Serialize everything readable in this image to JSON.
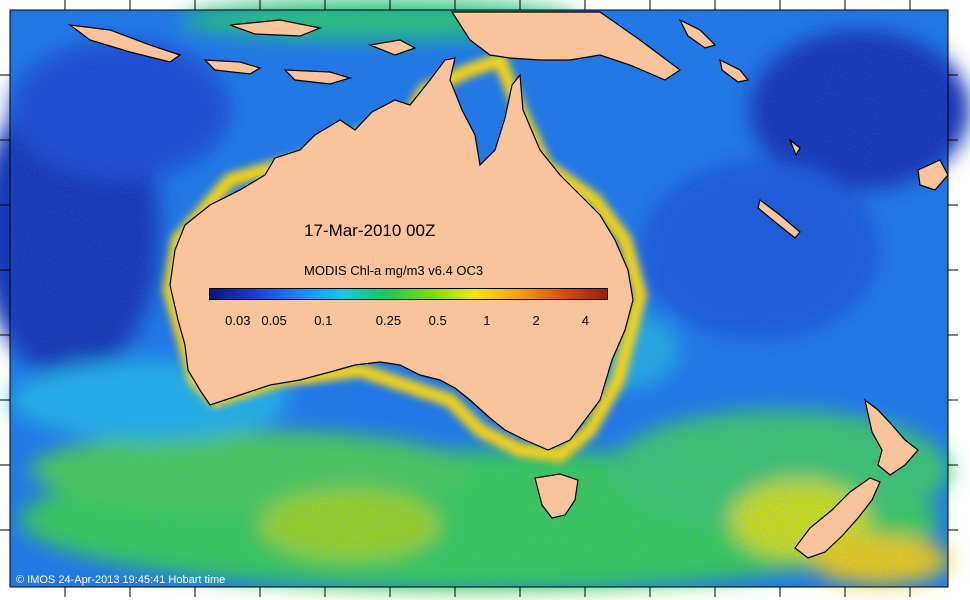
{
  "map": {
    "date_label": "17-Mar-2010 00Z",
    "legend_title": "MODIS Chl-a mg/m3 v6.4 OC3",
    "legend_ticks": [
      "0.03",
      "0.05",
      "0.1",
      "0.25",
      "0.5",
      "1",
      "2",
      "4"
    ],
    "legend_colors": [
      "#0a1478",
      "#1e3cd2",
      "#1e82ff",
      "#16c8e6",
      "#1ec85a",
      "#78dc14",
      "#f0e614",
      "#f5a014",
      "#d25014",
      "#961e0a"
    ],
    "copyright": "© IMOS 24-Apr-2013 19:45:41 Hobart time",
    "land_color": "#f9c49b"
  }
}
